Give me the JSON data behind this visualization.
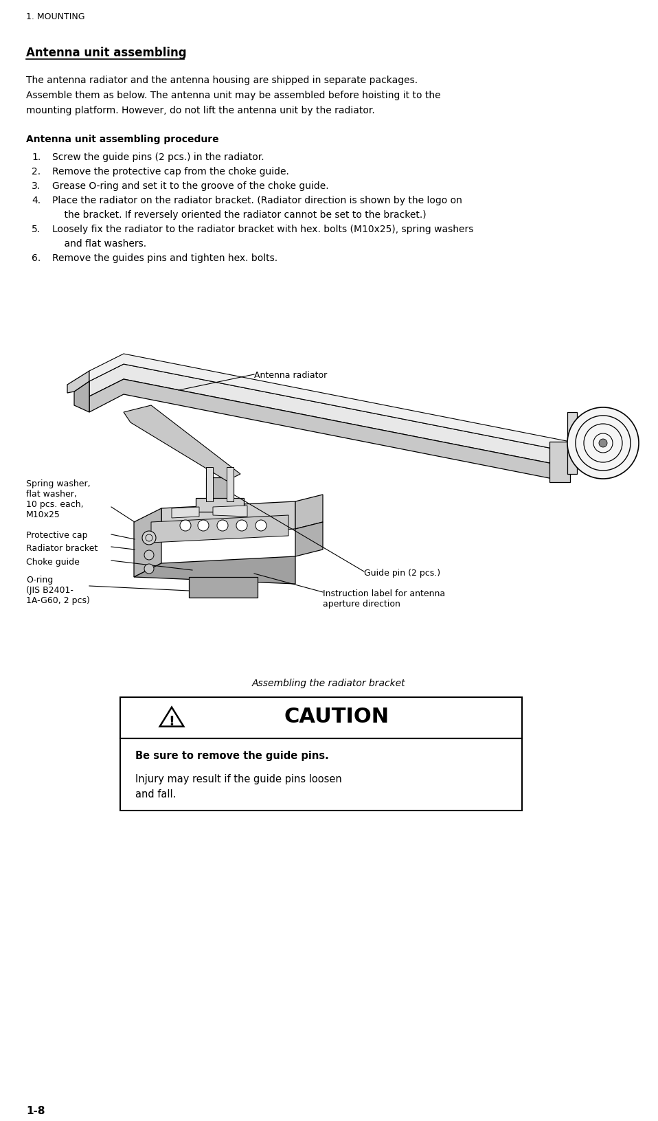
{
  "page_header": "1. MOUNTING",
  "section_title": "Antenna unit assembling",
  "paragraph1_lines": [
    "The antenna radiator and the antenna housing are shipped in separate packages.",
    "Assemble them as below. The antenna unit may be assembled before hoisting it to the",
    "mounting platform. However, do not lift the antenna unit by the radiator."
  ],
  "subsection_title": "Antenna unit assembling procedure",
  "steps": [
    [
      "1.",
      "Screw the guide pins (2 pcs.) in the radiator."
    ],
    [
      "2.",
      "Remove the protective cap from the choke guide."
    ],
    [
      "3.",
      "Grease O-ring and set it to the groove of the choke guide."
    ],
    [
      "4.",
      "Place the radiator on the radiator bracket. (Radiator direction is shown by the logo on"
    ],
    [
      "",
      "    the bracket. If reversely oriented the radiator cannot be set to the bracket.)"
    ],
    [
      "5.",
      "Loosely fix the radiator to the radiator bracket with hex. bolts (M10x25), spring washers"
    ],
    [
      "",
      "    and flat washers."
    ],
    [
      "6.",
      "Remove the guides pins and tighten hex. bolts."
    ]
  ],
  "caption": "Assembling the radiator bracket",
  "caution_title": "CAUTION",
  "caution_bold": "Be sure to remove the guide pins.",
  "caution_body": "Injury may result if the guide pins loosen\nand fall.",
  "page_number": "1-8",
  "bg_color": "#ffffff",
  "text_color": "#000000"
}
